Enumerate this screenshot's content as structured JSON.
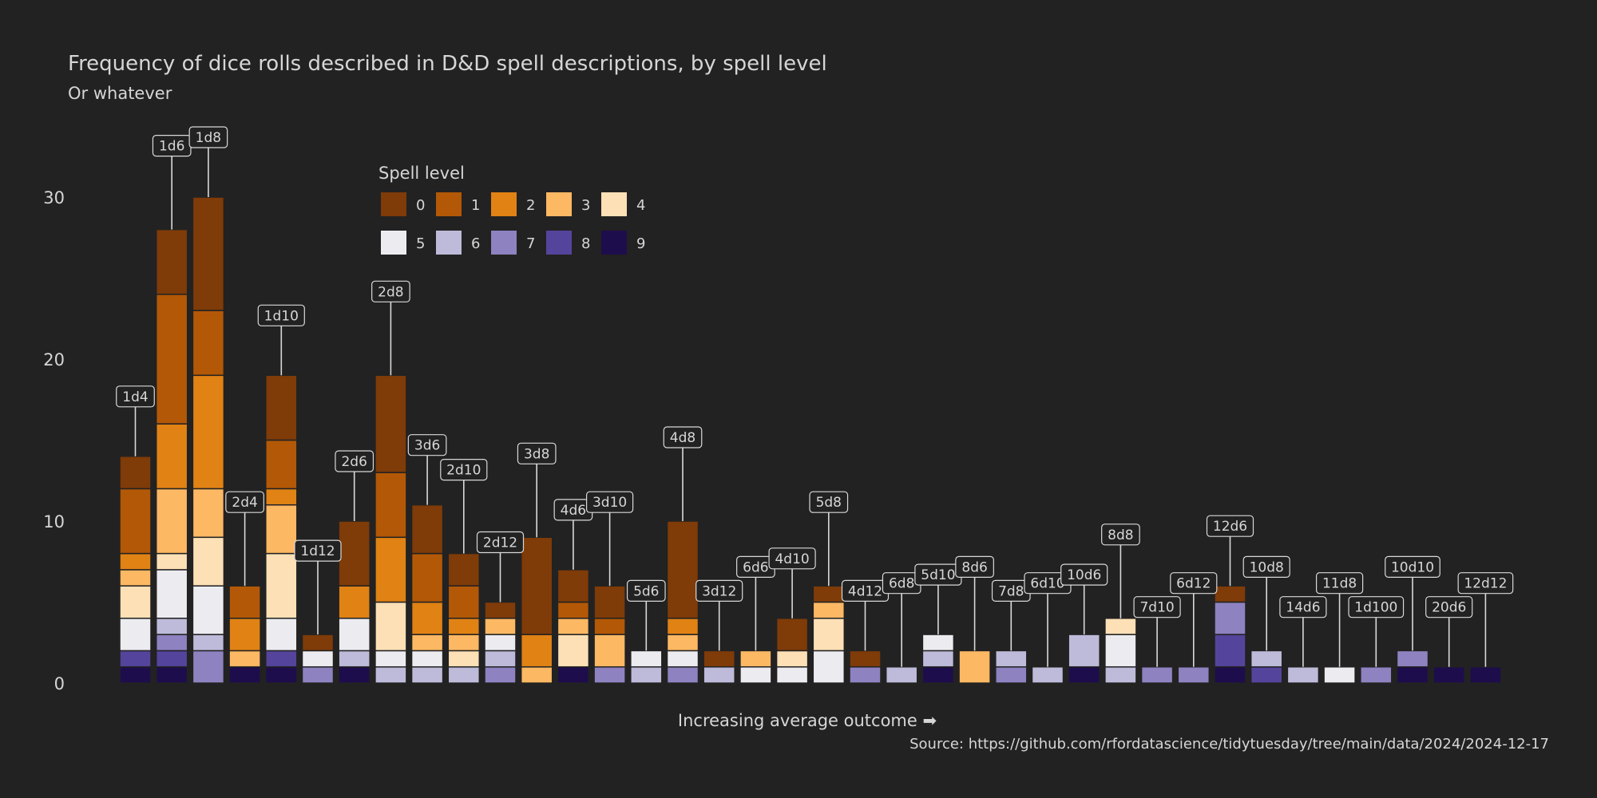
{
  "chart_data": {
    "type": "bar",
    "stacked": true,
    "title": "Frequency of dice rolls described in D&D spell descriptions, by spell level",
    "subtitle": "Or whatever",
    "xlabel": "Increasing average outcome ➡",
    "ylabel": "",
    "caption": "Source: https://github.com/rfordatascience/tidytuesday/tree/main/data/2024/2024-12-17",
    "ylim": [
      0,
      34
    ],
    "yticks": [
      0,
      10,
      20,
      30
    ],
    "grid": false,
    "legend": {
      "title": "Spell level",
      "placement": "top-center",
      "levels": [
        "0",
        "1",
        "2",
        "3",
        "4",
        "5",
        "6",
        "7",
        "8",
        "9"
      ],
      "colors": [
        "#7f3b08",
        "#b35806",
        "#e08214",
        "#fdb863",
        "#fee0b6",
        "#ebebf0",
        "#bdbbd9",
        "#8e82c0",
        "#55449b",
        "#1e0d4c"
      ]
    },
    "categories": [
      "1d4",
      "1d6",
      "1d8",
      "2d4",
      "1d10",
      "1d12",
      "2d6",
      "2d8",
      "3d6",
      "2d10",
      "2d12",
      "3d8",
      "4d6",
      "3d10",
      "5d6",
      "4d8",
      "3d12",
      "6d6",
      "4d10",
      "5d8",
      "4d12",
      "6d8",
      "5d10",
      "8d6",
      "7d8",
      "6d10",
      "10d6",
      "8d8",
      "7d10",
      "6d12",
      "12d6",
      "10d8",
      "14d6",
      "11d8",
      "1d100",
      "10d10",
      "20d6",
      "12d12"
    ],
    "series": [
      {
        "name": "0",
        "values": [
          2,
          4,
          7,
          0,
          4,
          1,
          4,
          6,
          3,
          2,
          1,
          6,
          2,
          2,
          0,
          6,
          1,
          0,
          2,
          1,
          1,
          0,
          0,
          0,
          0,
          0,
          0,
          0,
          0,
          0,
          1,
          0,
          0,
          0,
          0,
          0,
          0,
          0
        ]
      },
      {
        "name": "1",
        "values": [
          4,
          8,
          4,
          2,
          3,
          0,
          0,
          4,
          3,
          2,
          0,
          0,
          1,
          1,
          0,
          0,
          0,
          0,
          0,
          0,
          0,
          0,
          0,
          0,
          0,
          0,
          0,
          0,
          0,
          0,
          0,
          0,
          0,
          0,
          0,
          0,
          0,
          0
        ]
      },
      {
        "name": "2",
        "values": [
          1,
          4,
          7,
          2,
          1,
          0,
          2,
          4,
          2,
          1,
          0,
          2,
          0,
          0,
          0,
          1,
          0,
          0,
          0,
          0,
          0,
          0,
          0,
          0,
          0,
          0,
          0,
          0,
          0,
          0,
          0,
          0,
          0,
          0,
          0,
          0,
          0,
          0
        ]
      },
      {
        "name": "3",
        "values": [
          1,
          4,
          3,
          1,
          3,
          0,
          0,
          0,
          1,
          1,
          1,
          1,
          1,
          2,
          0,
          1,
          0,
          1,
          0,
          1,
          0,
          0,
          0,
          2,
          0,
          0,
          0,
          0,
          0,
          0,
          0,
          0,
          0,
          0,
          0,
          0,
          0,
          0
        ]
      },
      {
        "name": "4",
        "values": [
          2,
          1,
          3,
          0,
          4,
          0,
          0,
          3,
          0,
          1,
          0,
          0,
          2,
          0,
          0,
          0,
          0,
          0,
          1,
          2,
          0,
          0,
          0,
          0,
          0,
          0,
          0,
          1,
          0,
          0,
          0,
          0,
          0,
          0,
          0,
          0,
          0,
          0
        ]
      },
      {
        "name": "5",
        "values": [
          2,
          3,
          3,
          0,
          2,
          1,
          2,
          1,
          1,
          0,
          1,
          0,
          0,
          0,
          1,
          1,
          0,
          1,
          1,
          2,
          0,
          0,
          1,
          0,
          0,
          0,
          0,
          2,
          0,
          0,
          0,
          0,
          0,
          1,
          0,
          0,
          0,
          0
        ]
      },
      {
        "name": "6",
        "values": [
          0,
          1,
          1,
          0,
          0,
          0,
          1,
          1,
          1,
          1,
          1,
          0,
          0,
          0,
          1,
          0,
          1,
          0,
          0,
          0,
          0,
          1,
          1,
          0,
          1,
          1,
          2,
          1,
          0,
          0,
          0,
          1,
          1,
          0,
          0,
          0,
          0,
          0
        ]
      },
      {
        "name": "7",
        "values": [
          0,
          1,
          2,
          0,
          0,
          1,
          0,
          0,
          0,
          0,
          1,
          0,
          0,
          1,
          0,
          1,
          0,
          0,
          0,
          0,
          1,
          0,
          0,
          0,
          1,
          0,
          0,
          0,
          1,
          1,
          2,
          0,
          0,
          0,
          1,
          1,
          0,
          0
        ]
      },
      {
        "name": "8",
        "values": [
          1,
          1,
          0,
          0,
          1,
          0,
          0,
          0,
          0,
          0,
          0,
          0,
          0,
          0,
          0,
          0,
          0,
          0,
          0,
          0,
          0,
          0,
          0,
          0,
          0,
          0,
          0,
          0,
          0,
          0,
          2,
          1,
          0,
          0,
          0,
          0,
          0,
          0
        ]
      },
      {
        "name": "9",
        "values": [
          1,
          1,
          0,
          1,
          1,
          0,
          1,
          0,
          0,
          0,
          0,
          0,
          1,
          0,
          0,
          0,
          0,
          0,
          0,
          0,
          0,
          0,
          1,
          0,
          0,
          0,
          1,
          0,
          0,
          0,
          1,
          0,
          0,
          0,
          0,
          1,
          1,
          1
        ]
      }
    ]
  }
}
